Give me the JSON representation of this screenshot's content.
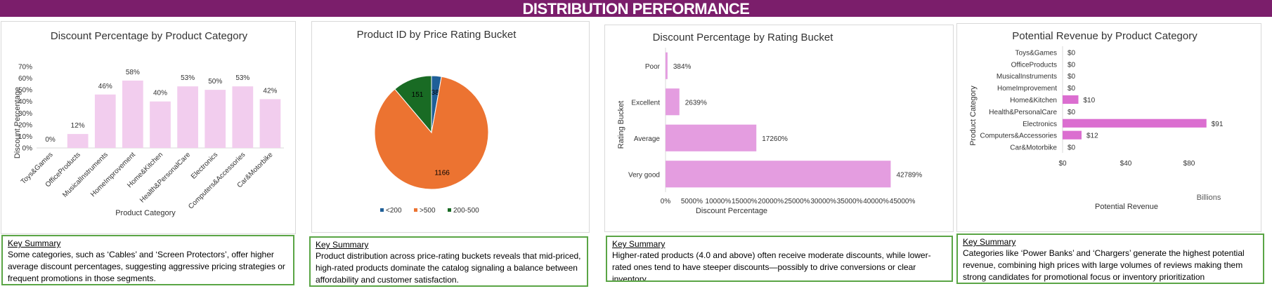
{
  "dashboard": {
    "title": "DISTRIBUTION PERFORMANCE"
  },
  "charts": {
    "c1": {
      "type": "bar",
      "title": "Discount Percentage by Product Category",
      "xlabel": "Product Category",
      "ylabel": "Discount Percentage",
      "categories": [
        "Toys&Games",
        "OfficeProducts",
        "MusicalInstruments",
        "HomeImprovement",
        "Home&Kitchen",
        "Health&PersonalCare",
        "Electronics",
        "Computers&Accessories",
        "Car&Motorbike"
      ],
      "values": [
        0,
        12,
        46,
        58,
        40,
        53,
        50,
        53,
        42
      ],
      "data_labels": [
        "0%",
        "12%",
        "46%",
        "58%",
        "40%",
        "53%",
        "50%",
        "53%",
        "42%"
      ],
      "yticks": [
        "0%",
        "10%",
        "20%",
        "30%",
        "40%",
        "50%",
        "60%",
        "70%"
      ],
      "ylim": [
        0,
        70
      ],
      "bar_color": "#f2cdee"
    },
    "c2": {
      "type": "pie",
      "title": "Product ID by Price Rating Bucket",
      "slices": [
        {
          "name": "<200",
          "value": 38,
          "label": "38",
          "color": "#1f5f98"
        },
        {
          "name": ">500",
          "value": 1166,
          "label": "1166",
          "color": "#ec7331"
        },
        {
          "name": "200-500",
          "value": 151,
          "label": "151",
          "color": "#196b24"
        }
      ]
    },
    "c3": {
      "type": "bar",
      "title": "Discount Percentage  by Rating Bucket",
      "xlabel": "Discount Percentage",
      "ylabel": "Rating Bucket",
      "categories": [
        "Poor",
        "Excellent",
        "Average",
        "Very good"
      ],
      "values": [
        384,
        2639,
        17260,
        42789
      ],
      "data_labels": [
        "384%",
        "2639%",
        "17260%",
        "42789%"
      ],
      "xticks": [
        "0%",
        "5000%",
        "10000%",
        "15000%",
        "20000%",
        "25000%",
        "30000%",
        "35000%",
        "40000%",
        "45000%"
      ],
      "xlim": [
        0,
        45000
      ],
      "bar_color": "#e49de0"
    },
    "c4": {
      "type": "bar",
      "title": "Potential Revenue by Product Category",
      "xlabel": "Potential Revenue",
      "ylabel": "Product Category",
      "unit_label": "Billions",
      "categories": [
        "Toys&Games",
        "OfficeProducts",
        "MusicalInstruments",
        "HomeImprovement",
        "Home&Kitchen",
        "Health&PersonalCare",
        "Electronics",
        "Computers&Accessories",
        "Car&Motorbike"
      ],
      "values": [
        0,
        0,
        0,
        0,
        10,
        0,
        91,
        12,
        0
      ],
      "data_labels": [
        "$0",
        "$0",
        "$0",
        "$0",
        "$10",
        "$0",
        "$91",
        "$12",
        "$0"
      ],
      "xticks": [
        "$0",
        "$40",
        "$80"
      ],
      "xlim": [
        0,
        100
      ],
      "bar_color": "#db6ed0"
    }
  },
  "summaries": [
    {
      "heading": "Key Summary",
      "text": "Some categories, such as ‘Cables’ and ‘Screen Protectors’, offer higher average discount percentages, suggesting aggressive pricing strategies or frequent promotions in those segments."
    },
    {
      "heading": "Key Summary",
      "text": "Product distribution across price-rating buckets reveals that mid-priced, high-rated products dominate the catalog signaling a balance between affordability and customer satisfaction."
    },
    {
      "heading": "Key Summary",
      "text": "Higher-rated products (4.0 and above) often receive moderate discounts, while lower-rated ones tend to have steeper discounts—possibly to drive conversions or clear inventory."
    },
    {
      "heading": "Key Summary",
      "text": "Categories like ‘Power Banks’ and ‘Chargers’ generate the highest potential revenue, combining high prices with large volumes of reviews making them strong candidates for promotional focus or inventory prioritization"
    }
  ]
}
